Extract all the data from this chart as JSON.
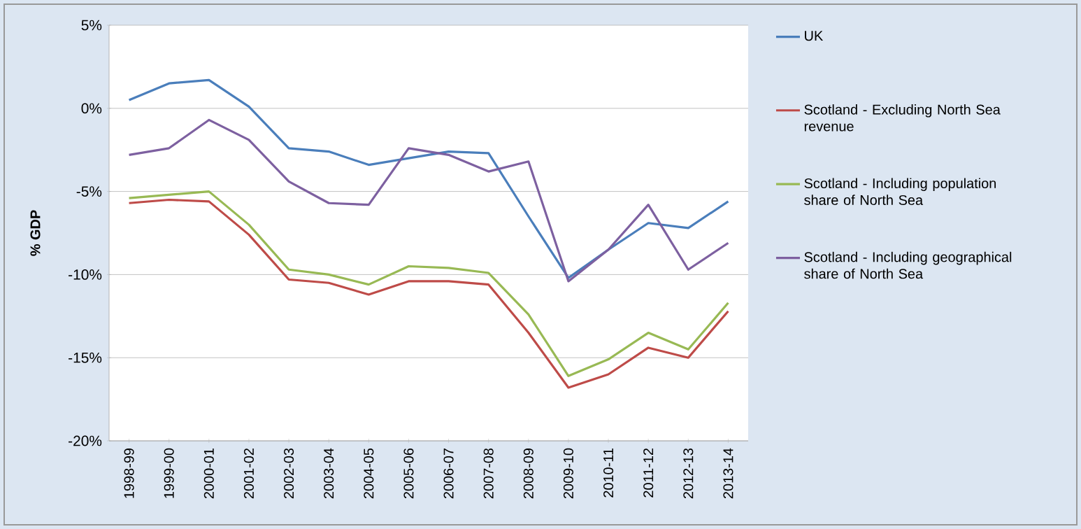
{
  "chart_data": {
    "type": "line",
    "ylabel": "% GDP",
    "categories": [
      "1998-99",
      "1999-00",
      "2000-01",
      "2001-02",
      "2002-03",
      "2003-04",
      "2004-05",
      "2005-06",
      "2006-07",
      "2007-08",
      "2008-09",
      "2009-10",
      "2010-11",
      "2011-12",
      "2012-13",
      "2013-14"
    ],
    "series": [
      {
        "name": "UK",
        "color": "#4a7ebb",
        "values": [
          0.5,
          1.5,
          1.7,
          0.1,
          -2.4,
          -2.6,
          -3.4,
          -3.0,
          -2.6,
          -2.7,
          -6.5,
          -10.2,
          -8.5,
          -6.9,
          -7.2,
          -5.6
        ]
      },
      {
        "name": "Scotland - Excluding North Sea revenue",
        "color": "#be4b48",
        "values": [
          -5.7,
          -5.5,
          -5.6,
          -7.6,
          -10.3,
          -10.5,
          -11.2,
          -10.4,
          -10.4,
          -10.6,
          -13.5,
          -16.8,
          -16.0,
          -14.4,
          -15.0,
          -12.2
        ]
      },
      {
        "name": "Scotland - Including population share of North Sea",
        "color": "#98b954",
        "values": [
          -5.4,
          -5.2,
          -5.0,
          -7.0,
          -9.7,
          -10.0,
          -10.6,
          -9.5,
          -9.6,
          -9.9,
          -12.4,
          -16.1,
          -15.1,
          -13.5,
          -14.5,
          -11.7
        ]
      },
      {
        "name": "Scotland - Including geographical share of North Sea",
        "color": "#7d60a0",
        "values": [
          -2.8,
          -2.4,
          -0.7,
          -1.9,
          -4.4,
          -5.7,
          -5.8,
          -2.4,
          -2.8,
          -3.8,
          -3.2,
          -10.4,
          -8.5,
          -5.8,
          -9.7,
          -8.1
        ]
      }
    ],
    "ylim": [
      -20,
      5
    ],
    "yticks": [
      {
        "value": 5,
        "label": "5%"
      },
      {
        "value": 0,
        "label": "0%"
      },
      {
        "value": -5,
        "label": "-5%"
      },
      {
        "value": -10,
        "label": "-10%"
      },
      {
        "value": -15,
        "label": "-15%"
      },
      {
        "value": -20,
        "label": "-20%"
      }
    ],
    "grid": "y",
    "legend": "right",
    "marker": "none",
    "line_style": "solid"
  }
}
